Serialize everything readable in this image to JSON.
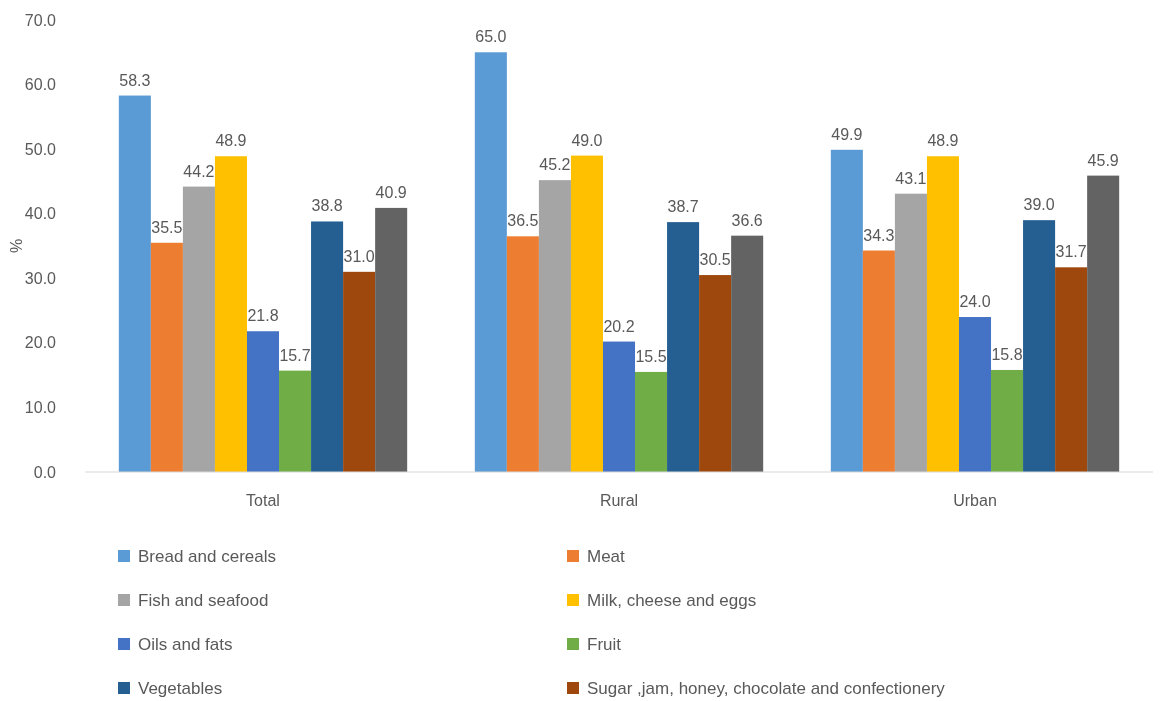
{
  "chart_data": {
    "type": "bar",
    "ylabel": "%",
    "categories": [
      "Total",
      "Rural",
      "Urban"
    ],
    "ylim": [
      0,
      70
    ],
    "yticks": [
      {
        "value": 0,
        "label": "0.0"
      },
      {
        "value": 10,
        "label": "10.0"
      },
      {
        "value": 20,
        "label": "20.0"
      },
      {
        "value": 30,
        "label": "30.0"
      },
      {
        "value": 40,
        "label": "40.0"
      },
      {
        "value": 50,
        "label": "50.0"
      },
      {
        "value": 60,
        "label": "60.0"
      },
      {
        "value": 70,
        "label": "70.0"
      }
    ],
    "grid": false,
    "legend": "bottom",
    "series": [
      {
        "name": "Bread and cereals",
        "color": "#5b9bd5",
        "values": [
          58.3,
          65.0,
          49.9
        ],
        "value_labels": [
          "58.3",
          "65.0",
          "49.9"
        ]
      },
      {
        "name": "Meat",
        "color": "#ed7d31",
        "values": [
          35.5,
          36.5,
          34.3
        ],
        "value_labels": [
          "35.5",
          "36.5",
          "34.3"
        ]
      },
      {
        "name": "Fish and seafood",
        "color": "#a5a5a5",
        "values": [
          44.2,
          45.2,
          43.1
        ],
        "value_labels": [
          "44.2",
          "45.2",
          "43.1"
        ]
      },
      {
        "name": "Milk, cheese and eggs",
        "color": "#ffc000",
        "values": [
          48.9,
          49.0,
          48.9
        ],
        "value_labels": [
          "48.9",
          "49.0",
          "48.9"
        ]
      },
      {
        "name": "Oils and fats",
        "color": "#4472c4",
        "values": [
          21.8,
          20.2,
          24.0
        ],
        "value_labels": [
          "21.8",
          "20.2",
          "24.0"
        ]
      },
      {
        "name": "Fruit",
        "color": "#70ad47",
        "values": [
          15.7,
          15.5,
          15.8
        ],
        "value_labels": [
          "15.7",
          "15.5",
          "15.8"
        ]
      },
      {
        "name": "Vegetables",
        "color": "#255e91",
        "values": [
          38.8,
          38.7,
          39.0
        ],
        "value_labels": [
          "38.8",
          "38.7",
          "39.0"
        ]
      },
      {
        "name": "Sugar ,jam, honey, chocolate and confectionery",
        "color": "#9e480e",
        "values": [
          31.0,
          30.5,
          31.7
        ],
        "value_labels": [
          "31.0",
          "30.5",
          "31.7"
        ]
      },
      {
        "color": "#636363",
        "values": [
          40.9,
          36.6,
          45.9
        ],
        "value_labels": [
          "40.9",
          "36.6",
          "45.9"
        ]
      }
    ]
  }
}
